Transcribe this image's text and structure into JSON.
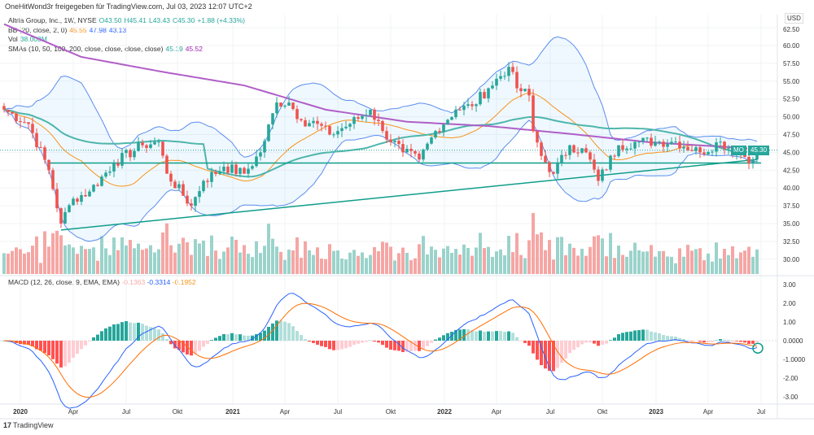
{
  "header": {
    "text": "OneHitWond3r freigegeben für TradingView.com, Jul 03, 2023 12:07 UTC+2"
  },
  "legend": {
    "symbol": "Altria Group, Inc., 1W, NYSE",
    "open": "O43.50",
    "high": "H45.41",
    "low": "L43.43",
    "close": "C45.30",
    "change": "+1.88 (+4.33%)",
    "bb_label": "BB (20, close, 2, 0)",
    "bb_basis": "45.55",
    "bb_upper": "47.98",
    "bb_lower": "43.13",
    "vol_label": "Vol",
    "vol_value": "38.003M",
    "sma_label": "SMAs (10, 50, 100, 200, close, close, close, close)",
    "sma_a": "45.19",
    "sma_b": "45.52"
  },
  "macd_legend": {
    "label": "MACD (12, 26, close, 9, EMA, EMA)",
    "hist": "-0.1363",
    "macd": "-0.3314",
    "signal": "-0.1952"
  },
  "price_axis": {
    "currency": "USD",
    "ticks": [
      "62.50",
      "60.00",
      "57.50",
      "55.00",
      "52.50",
      "50.00",
      "47.50",
      "45.00",
      "42.50",
      "40.00",
      "37.50",
      "35.00",
      "32.50",
      "30.00"
    ]
  },
  "macd_axis": {
    "ticks": [
      "3.00",
      "2.00",
      "1.00",
      "0.0000",
      "-1.0000",
      "-2.00",
      "-3.00"
    ]
  },
  "time_axis": {
    "labels": [
      "2020",
      "Apr",
      "Jul",
      "Okt",
      "2021",
      "Apr",
      "Jul",
      "Okt",
      "2022",
      "Apr",
      "Jul",
      "Okt",
      "2023",
      "Apr",
      "Jul"
    ]
  },
  "price_tag": {
    "symbol": "MO",
    "price": "45.30"
  },
  "brand": {
    "logo": "17",
    "name": "TradingView"
  },
  "colors": {
    "up": "#26a69a",
    "down": "#ef5350",
    "bb": "#5b8def",
    "basis": "#f7931a",
    "sma_a": "#4db6ac",
    "sma_b": "#b05fc7"
  },
  "chart_data": {
    "type": "candlestick",
    "weeks": 186,
    "close_keypoints": [
      [
        0,
        51
      ],
      [
        6,
        49
      ],
      [
        11,
        42.5
      ],
      [
        14,
        35
      ],
      [
        17,
        38.5
      ],
      [
        21,
        39.5
      ],
      [
        27,
        43.5
      ],
      [
        34,
        46
      ],
      [
        38,
        46.5
      ],
      [
        40,
        42
      ],
      [
        46,
        37.5
      ],
      [
        49,
        41
      ],
      [
        54,
        43
      ],
      [
        59,
        42
      ],
      [
        63,
        45
      ],
      [
        67,
        52
      ],
      [
        70,
        52
      ],
      [
        73,
        49.5
      ],
      [
        77,
        49
      ],
      [
        80,
        47.5
      ],
      [
        85,
        49
      ],
      [
        90,
        51
      ],
      [
        93,
        48
      ],
      [
        98,
        45
      ],
      [
        102,
        44
      ],
      [
        106,
        48
      ],
      [
        111,
        51
      ],
      [
        115,
        51.5
      ],
      [
        119,
        54
      ],
      [
        124,
        57
      ],
      [
        126,
        54
      ],
      [
        129,
        53
      ],
      [
        130,
        48
      ],
      [
        132,
        44.5
      ],
      [
        135,
        42
      ],
      [
        139,
        46
      ],
      [
        143,
        45
      ],
      [
        146,
        41
      ],
      [
        151,
        46
      ],
      [
        156,
        46.5
      ],
      [
        161,
        46.5
      ],
      [
        165,
        46.5
      ],
      [
        171,
        45
      ],
      [
        176,
        46.5
      ],
      [
        180,
        45
      ],
      [
        184,
        44
      ],
      [
        185,
        45.3
      ]
    ],
    "sma200_keypoints": [
      [
        0,
        63
      ],
      [
        19,
        58.4
      ],
      [
        39,
        56.3
      ],
      [
        59,
        54.4
      ],
      [
        79,
        51
      ],
      [
        99,
        49.3
      ],
      [
        119,
        48.7
      ],
      [
        139,
        47.6
      ],
      [
        159,
        46.4
      ],
      [
        185,
        45.5
      ]
    ],
    "horizontal_line": 43.5,
    "trendline": [
      [
        14,
        34.1
      ],
      [
        185,
        44.0
      ]
    ],
    "ylim": [
      29,
      63
    ],
    "macd_ylim": [
      -3.2,
      3.2
    ]
  }
}
